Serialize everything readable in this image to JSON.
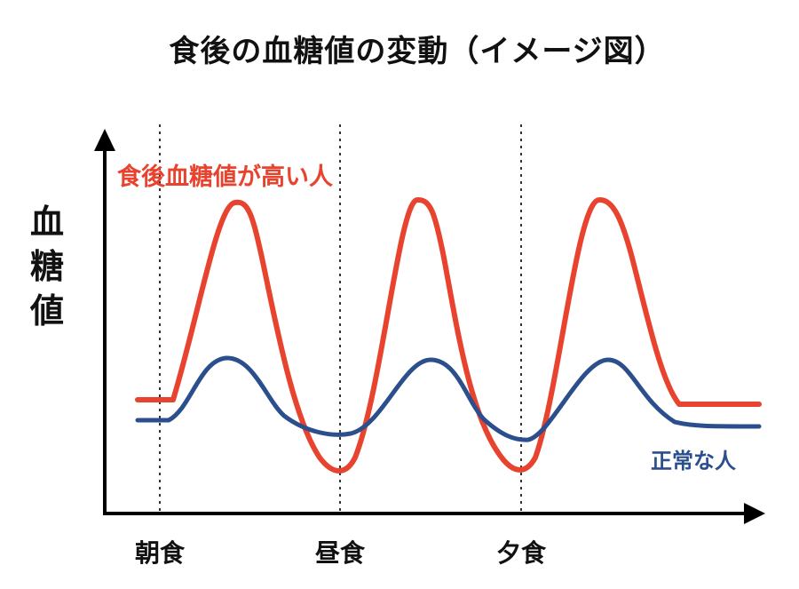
{
  "chart_data": {
    "type": "line",
    "title": "食後の血糖値の変動（イメージ図）",
    "ylabel": [
      "血",
      "糖",
      "値"
    ],
    "meals": [
      "朝食",
      "昼食",
      "夕食"
    ],
    "series": [
      {
        "name": "食後血糖値が高い人",
        "color": "#e8432e",
        "shape": "spiky"
      },
      {
        "name": "正常な人",
        "color": "#2b4f8c",
        "shape": "gentle"
      }
    ]
  }
}
